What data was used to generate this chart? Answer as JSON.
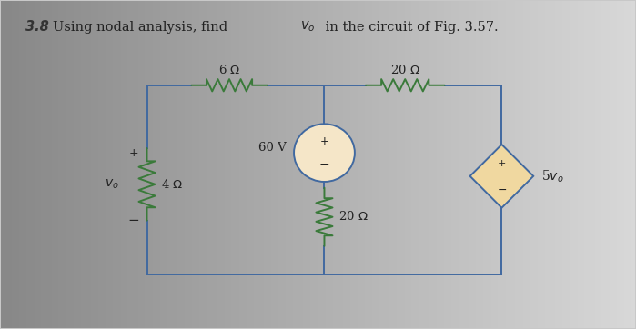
{
  "bg_color_left": "#a0a0a0",
  "bg_color_right": "#e8e8e8",
  "wire_color": "#4169a0",
  "resistor_color": "#3a7a3a",
  "source_fill": "#f5e6c8",
  "diamond_fill": "#f0d8a0",
  "text_color": "#222222",
  "fig_width": 6.99,
  "fig_height": 3.62,
  "title_number": "3.8",
  "title_text": "Using nodal analysis, find ",
  "title_vo": "$v_o$",
  "title_end": " in the circuit of Fig. 3.57."
}
